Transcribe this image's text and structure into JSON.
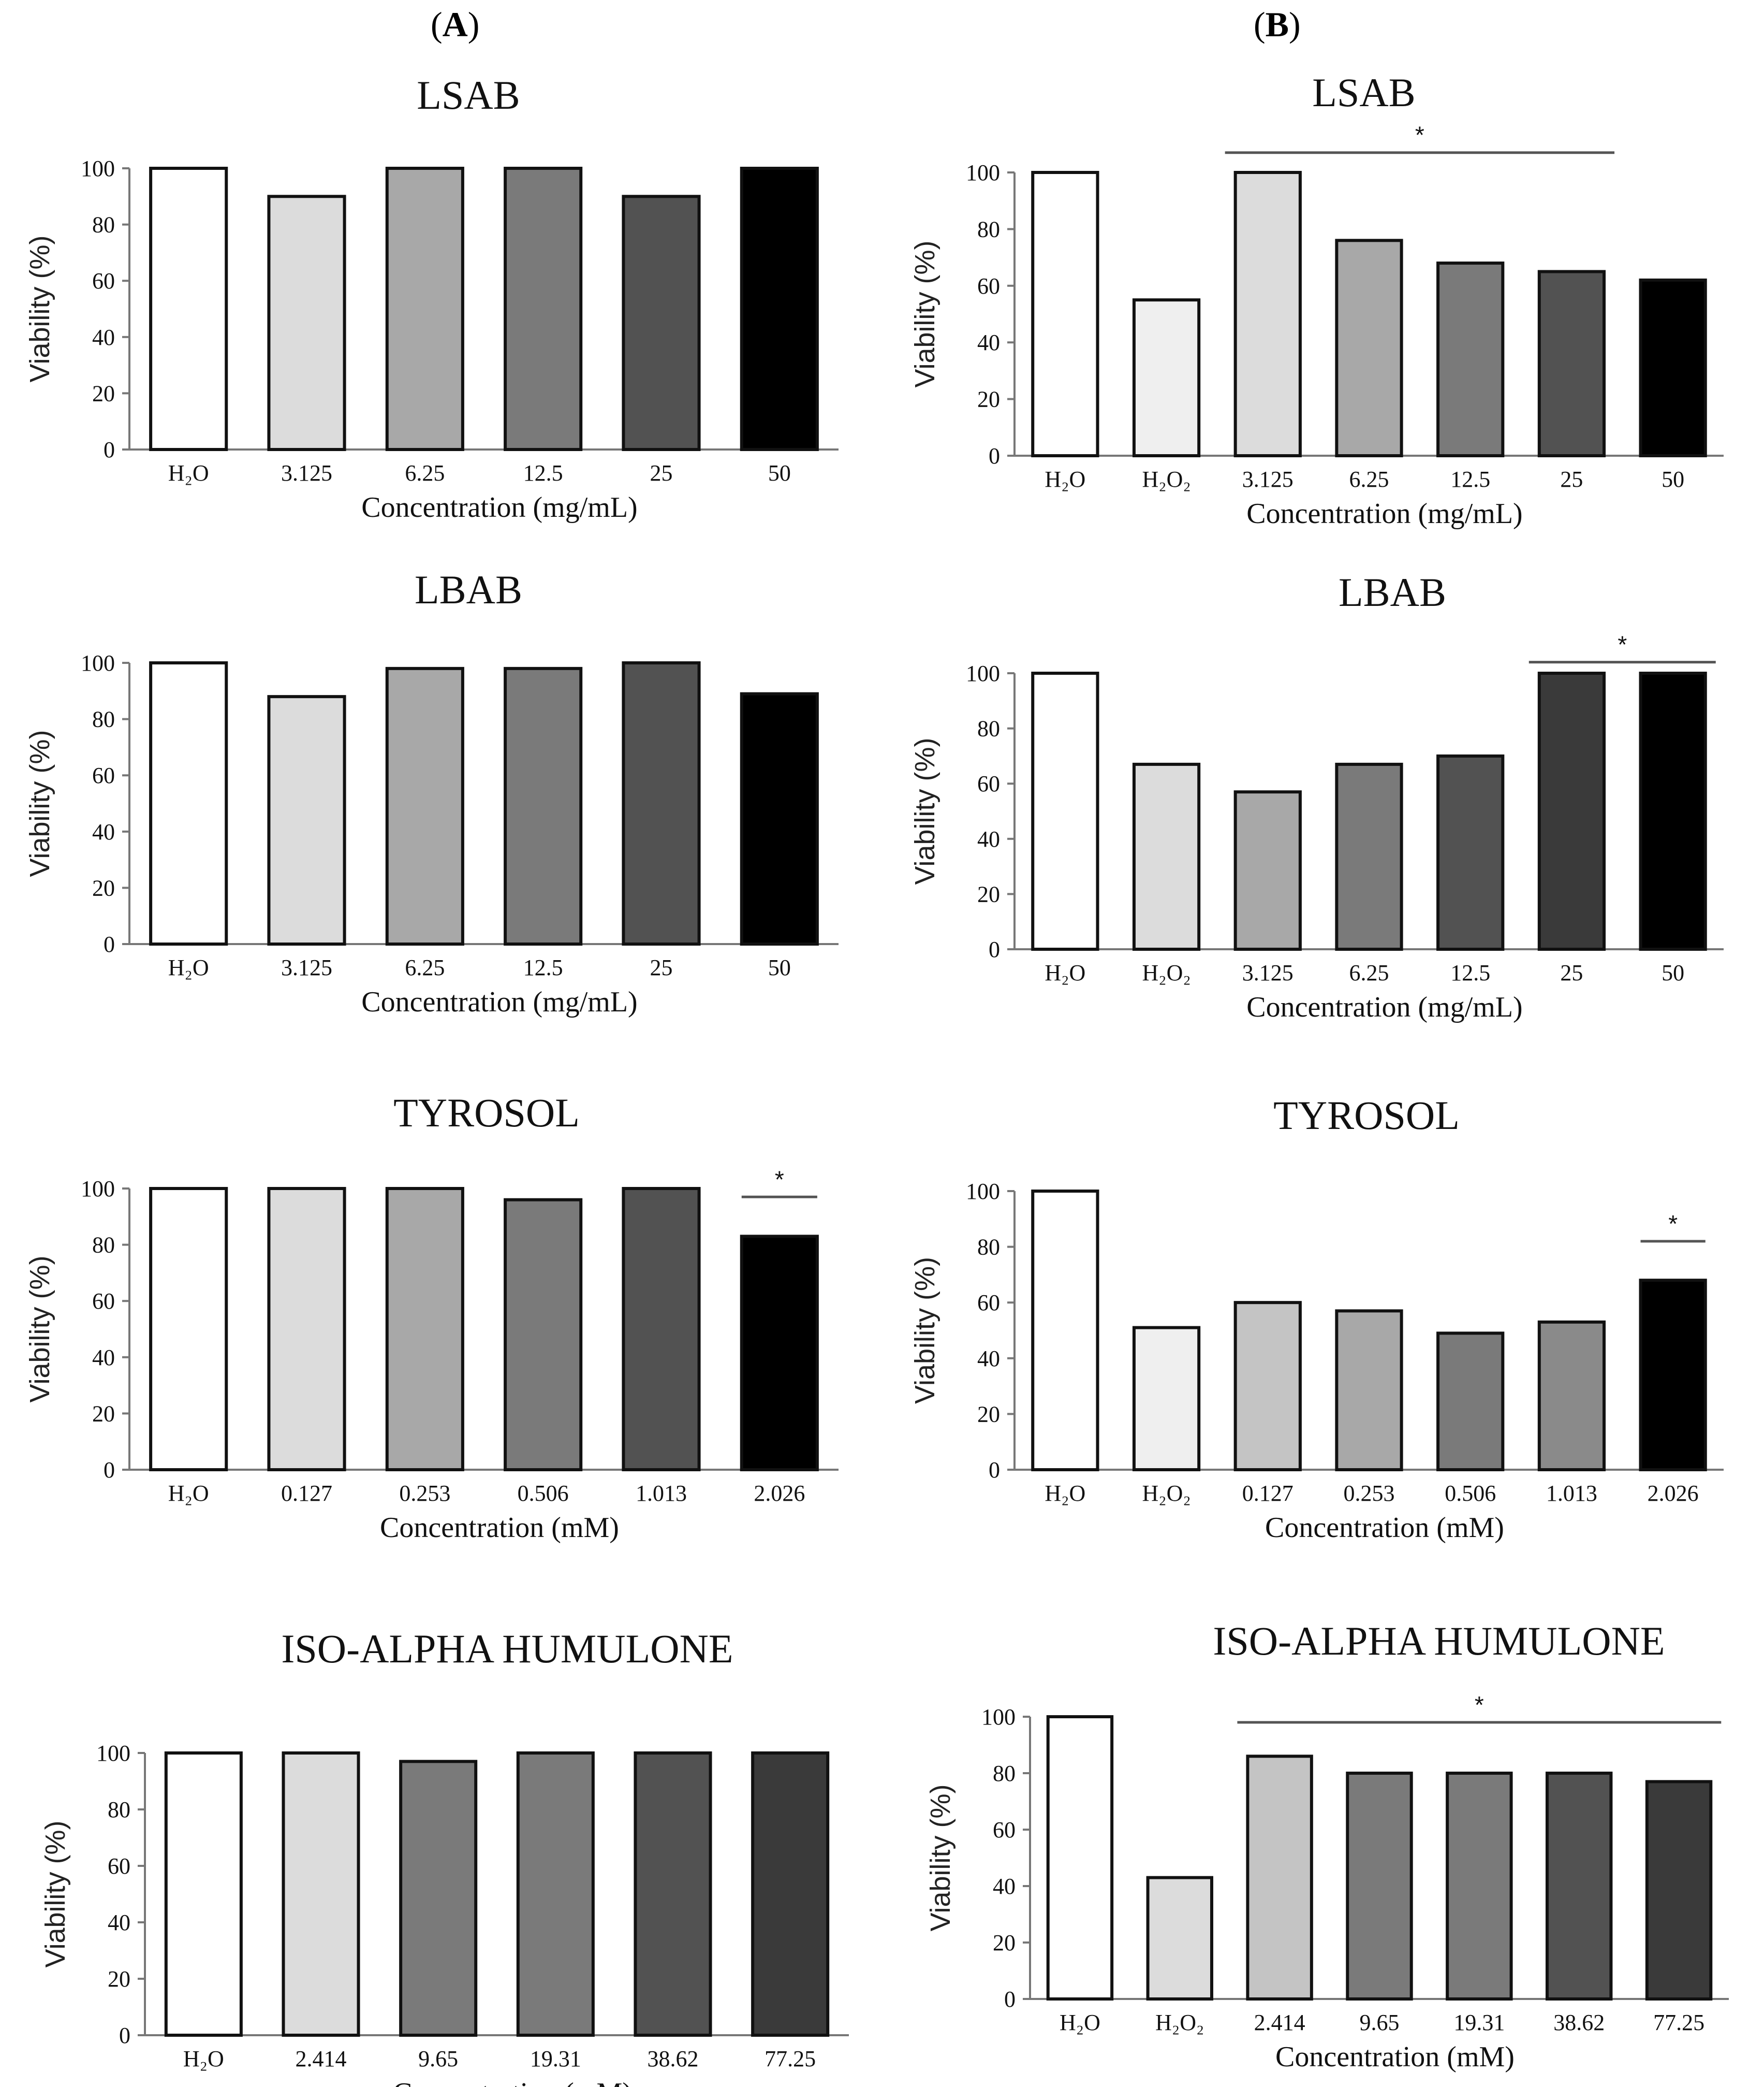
{
  "panels": [
    {
      "label": "A"
    },
    {
      "label": "B"
    }
  ],
  "chart_data": [
    {
      "panel": "A",
      "type": "bar",
      "title": "LSAB",
      "categories": [
        "H2O",
        "3.125",
        "6.25",
        "12.5",
        "25",
        "50"
      ],
      "values": [
        100,
        90,
        100,
        100,
        90,
        100
      ],
      "colors": [
        "#ffffff",
        "#dcdcdc",
        "#a8a8a8",
        "#7a7a7a",
        "#525252",
        "#000000"
      ],
      "xlabel": "Concentration (mg/mL)",
      "ylabel": "Viability (%)",
      "ylim": [
        0,
        100
      ],
      "yticks": [
        0,
        20,
        40,
        60,
        80,
        100
      ],
      "significance": []
    },
    {
      "panel": "B",
      "type": "bar",
      "title": "LSAB",
      "categories": [
        "H2O",
        "H2O2",
        "3.125",
        "6.25",
        "12.5",
        "25",
        "50"
      ],
      "values": [
        100,
        55,
        100,
        76,
        68,
        65,
        62
      ],
      "colors": [
        "#ffffff",
        "#efefef",
        "#dcdcdc",
        "#a8a8a8",
        "#7a7a7a",
        "#525252",
        "#000000"
      ],
      "xlabel": "Concentration (mg/mL)",
      "ylabel": "Viability (%)",
      "ylim": [
        0,
        100
      ],
      "yticks": [
        0,
        20,
        40,
        60,
        80,
        100
      ],
      "significance": [
        {
          "from": 2,
          "to": 5,
          "y": 107,
          "label": "*"
        }
      ]
    },
    {
      "panel": "A",
      "type": "bar",
      "title": "LBAB",
      "categories": [
        "H2O",
        "3.125",
        "6.25",
        "12.5",
        "25",
        "50"
      ],
      "values": [
        100,
        88,
        98,
        98,
        100,
        89
      ],
      "colors": [
        "#ffffff",
        "#dcdcdc",
        "#a8a8a8",
        "#7a7a7a",
        "#525252",
        "#000000"
      ],
      "xlabel": "Concentration (mg/mL)",
      "ylabel": "Viability (%)",
      "ylim": [
        0,
        100
      ],
      "yticks": [
        0,
        20,
        40,
        60,
        80,
        100
      ],
      "significance": []
    },
    {
      "panel": "B",
      "type": "bar",
      "title": "LBAB",
      "categories": [
        "H2O",
        "H2O2",
        "3.125",
        "6.25",
        "12.5",
        "25",
        "50"
      ],
      "values": [
        100,
        67,
        57,
        67,
        70,
        100,
        100
      ],
      "colors": [
        "#ffffff",
        "#dcdcdc",
        "#a8a8a8",
        "#7a7a7a",
        "#525252",
        "#3a3a3a",
        "#000000"
      ],
      "xlabel": "Concentration (mg/mL)",
      "ylabel": "Viability (%)",
      "ylim": [
        0,
        100
      ],
      "yticks": [
        0,
        20,
        40,
        60,
        80,
        100
      ],
      "significance": [
        {
          "from": 5,
          "to": 6,
          "y": 104,
          "label": "*"
        }
      ]
    },
    {
      "panel": "A",
      "type": "bar",
      "title": "TYROSOL",
      "categories": [
        "H2O",
        "0.127",
        "0.253",
        "0.506",
        "1.013",
        "2.026"
      ],
      "values": [
        100,
        100,
        100,
        96,
        100,
        83
      ],
      "colors": [
        "#ffffff",
        "#dcdcdc",
        "#a8a8a8",
        "#7a7a7a",
        "#525252",
        "#000000"
      ],
      "xlabel": "Concentration (mM)",
      "ylabel": "Viability (%)",
      "ylim": [
        0,
        100
      ],
      "yticks": [
        0,
        20,
        40,
        60,
        80,
        100
      ],
      "significance": [
        {
          "from": 5,
          "to": 5,
          "y": 97,
          "label": "*"
        }
      ]
    },
    {
      "panel": "B",
      "type": "bar",
      "title": "TYROSOL",
      "categories": [
        "H2O",
        "H2O2",
        "0.127",
        "0.253",
        "0.506",
        "1.013",
        "2.026"
      ],
      "values": [
        100,
        51,
        60,
        57,
        49,
        53,
        68
      ],
      "colors": [
        "#ffffff",
        "#efefef",
        "#c4c4c4",
        "#a8a8a8",
        "#7a7a7a",
        "#8a8a8a",
        "#000000"
      ],
      "xlabel": "Concentration (mM)",
      "ylabel": "Viability (%)",
      "ylim": [
        0,
        100
      ],
      "yticks": [
        0,
        20,
        40,
        60,
        80,
        100
      ],
      "significance": [
        {
          "from": 6,
          "to": 6,
          "y": 82,
          "label": "*"
        }
      ]
    },
    {
      "panel": "A",
      "type": "bar",
      "title": "ISO-ALPHA HUMULONE",
      "categories": [
        "H2O",
        "2.414",
        "9.65",
        "19.31",
        "38.62",
        "77.25"
      ],
      "values": [
        100,
        100,
        97,
        100,
        100,
        100
      ],
      "colors": [
        "#ffffff",
        "#dcdcdc",
        "#7a7a7a",
        "#7a7a7a",
        "#525252",
        "#3a3a3a"
      ],
      "xlabel": "Concentration (mM)",
      "ylabel": "Viability (%)",
      "ylim": [
        0,
        100
      ],
      "yticks": [
        0,
        20,
        40,
        60,
        80,
        100
      ],
      "significance": []
    },
    {
      "panel": "B",
      "type": "bar",
      "title": "ISO-ALPHA HUMULONE",
      "categories": [
        "H2O",
        "H2O2",
        "2.414",
        "9.65",
        "19.31",
        "38.62",
        "77.25"
      ],
      "values": [
        100,
        43,
        86,
        80,
        80,
        80,
        77
      ],
      "colors": [
        "#ffffff",
        "#dcdcdc",
        "#c4c4c4",
        "#7a7a7a",
        "#7a7a7a",
        "#525252",
        "#3a3a3a"
      ],
      "xlabel": "Concentration (mM)",
      "ylabel": "Viability (%)",
      "ylim": [
        0,
        100
      ],
      "yticks": [
        0,
        20,
        40,
        60,
        80,
        100
      ],
      "significance": [
        {
          "from": 2,
          "to": 6,
          "y": 98,
          "label": "*"
        }
      ]
    }
  ]
}
